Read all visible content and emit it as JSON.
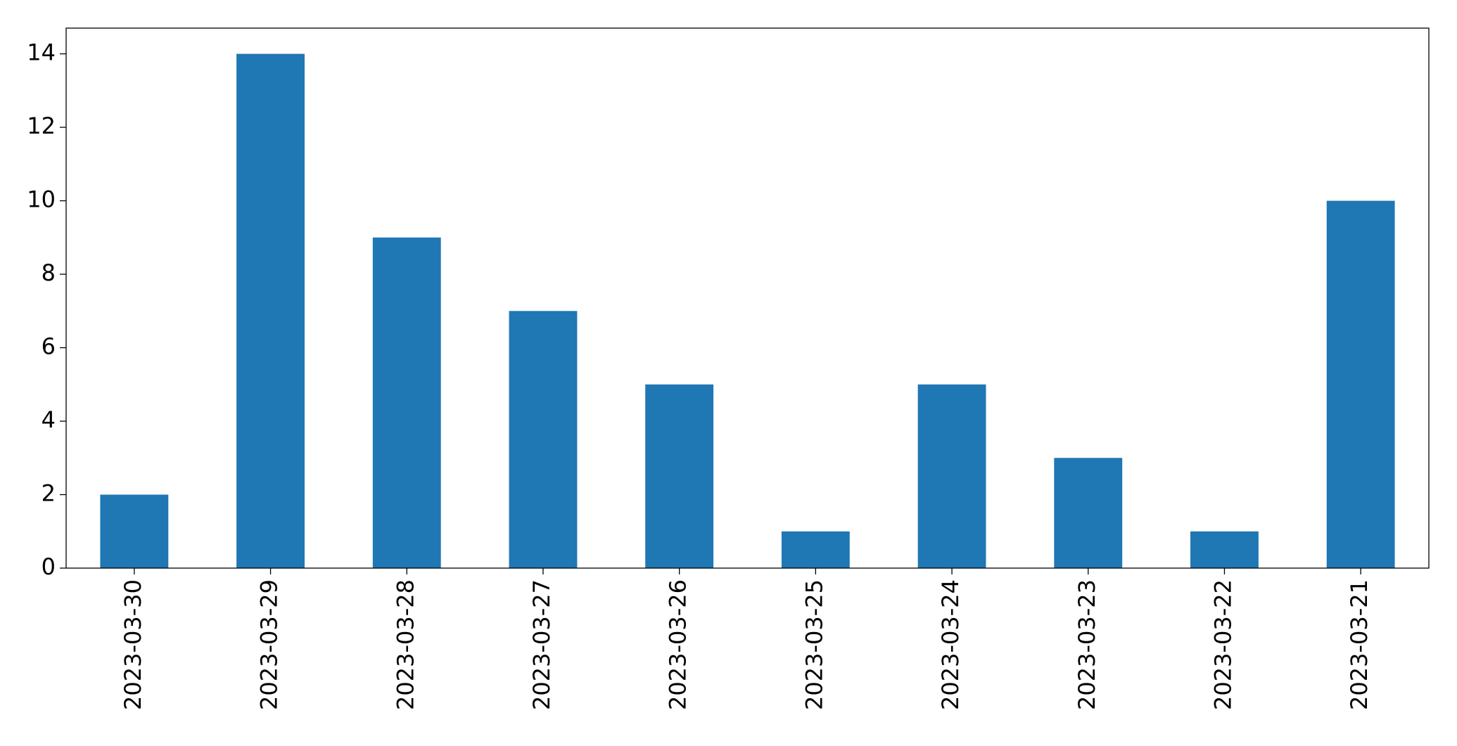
{
  "chart_data": {
    "type": "bar",
    "categories": [
      "2023-03-30",
      "2023-03-29",
      "2023-03-28",
      "2023-03-27",
      "2023-03-26",
      "2023-03-25",
      "2023-03-24",
      "2023-03-23",
      "2023-03-22",
      "2023-03-21"
    ],
    "values": [
      2,
      14,
      9,
      7,
      5,
      1,
      5,
      3,
      1,
      10
    ],
    "color": "#1f77b4",
    "ylim": [
      0,
      14.7
    ],
    "yticks": [
      0,
      2,
      4,
      6,
      8,
      10,
      12,
      14
    ],
    "grid": false
  }
}
